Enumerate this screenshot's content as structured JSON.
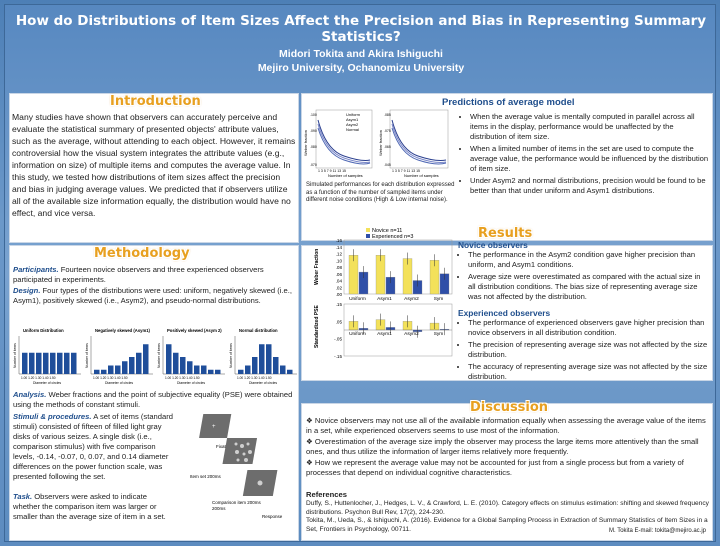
{
  "header": {
    "title": "How do Distributions of Item Sizes Affect the Precision and Bias in Representing Summary Statistics?",
    "authors": "Midori Tokita and  Akira Ishiguchi",
    "affiliation": "Mejiro University, Ochanomizu University"
  },
  "introduction": {
    "title": "Introduction",
    "text": "Many studies have shown that observers can accurately perceive and evaluate the statistical summary of presented objects' attribute values, such as the average, without attending to each object. However, it remains controversial how the visual system integrates the attribute values (e.g., information on size) of multiple items and computes the average value. In this study, we tested how distributions of item sizes affect the precision and bias in judging average values. We predicted that if observers utilize all of the available size information equally, the distribution would have no effect, and vice versa."
  },
  "predictions": {
    "title": "Predictions of average model",
    "caption": "Simulated performances for each distribution expressed as a function of the number of sampled items under different noise conditions (High & Low internal noise).",
    "bullets": [
      "When the average value is mentally computed in parallel across all items in the display, performance would be unaffected by the distribution of item size.",
      "When a limited number of items in the set are used to compute the average value, the performance would be influenced by the distribution of item size.",
      "Under Asym2 and normal distributions, precision would be found to be better than that under uniform and Asym1 distributions."
    ],
    "legend": [
      "Uniform",
      "Asym1",
      "Asym2",
      "Normal"
    ],
    "ylabel": "Weber fraction",
    "xlabel": "Number of samples",
    "left_ticks": [
      ".100",
      ".090",
      ".080",
      ".070"
    ],
    "right_ticks": [
      ".085",
      ".075",
      ".065",
      ".045"
    ],
    "x_ticks": "1 3 5 7 9 11 13 15"
  },
  "methodology": {
    "title": "Methodology",
    "participants_label": "Participants.",
    "participants": " Fourteen novice observers and three experienced observers participated in experiments.",
    "design_label": "Design.",
    "design": " Four types of the distributions were used: uniform, negatively skewed (i.e., Asym1), positively skewed (i.e., Asym2), and pseudo-normal distributions.",
    "dist_titles": [
      "Uniform Distribution",
      "Negatively skewed (Asym1)",
      "Positively skewed (Asym 2)",
      "Normal distribution"
    ],
    "dist_xlabel": "Diameter of circles",
    "dist_ylabel": "Number of items",
    "dist_values": [
      [
        5,
        5,
        5,
        5,
        5,
        5,
        5,
        5
      ],
      [
        1,
        1,
        2,
        2,
        3,
        4,
        5,
        7
      ],
      [
        7,
        5,
        4,
        3,
        2,
        2,
        1,
        1
      ],
      [
        1,
        2,
        4,
        7,
        7,
        4,
        2,
        1
      ]
    ],
    "dist_ticks": [
      "1.00  1.20  1.30  1.40  1.50",
      "1.00  1.20  1.30  1.40  1.50",
      "1.00  1.20  1.30  1.40  1.50",
      "1.00  1.20  1.30  1.40  1.50"
    ],
    "analysis_label": "Analysis.",
    "analysis": " Weber fractions and the point of subjective equality (PSE) were obtained using the methods of constant stimuli.",
    "stimuli_label": "Stimuli & procedures.",
    "stimuli": " A set of items (standard stimuli) consisted of fifteen of filled light gray disks of various seizes.  A single disk (i.e., comparison stimulus) with five comparison levels, -0.14, -0.07, 0, 0.07, and 0.14 diameter differences on the power function scale, was presented following the set.",
    "task_label": "Task.",
    "task": " Observers were asked to  indicate whether the comparison item was larger or smaller than the average size of item in a set.",
    "proc_labels": [
      "Fixation 500ms",
      "Item set 200ms",
      "Comparison item 200ms",
      "Response"
    ]
  },
  "results": {
    "title": "Results",
    "legend": [
      "Novice n=11",
      "Experienced n=3"
    ],
    "weber_ylabel": "Weber Fraction",
    "pse_ylabel": "Standardized PSE",
    "categories": [
      "Uniform",
      "Asym1",
      "Asym2",
      "Sym"
    ],
    "weber_ticks": [
      ".16",
      ".14",
      ".12",
      ".10",
      ".08",
      ".06",
      ".04",
      ".02",
      ".00"
    ],
    "pse_ticks": [
      ".15",
      ".05",
      "-.05",
      "-.15"
    ],
    "novice_heading": "Novice observers",
    "novice_bullets": [
      "The performance in the Asym2 condition gave higher precision than uniform, and Asym1 conditions.",
      "Average size were overestimated as compared with the actual size in all distribution conditions. The bias size of representing average size was not affected by the distribution."
    ],
    "experienced_heading": "Experienced observers",
    "experienced_bullets": [
      "The performance of experienced observers gave higher precision than novice observers in all distribution condition.",
      "The precision of representing average size was not affected by the size distribution.",
      "The accuracy of representing average size was not affected by the size distribution."
    ]
  },
  "chart_data": [
    {
      "type": "bar",
      "categories": [
        "Uniform",
        "Asym1",
        "Asym2",
        "Sym"
      ],
      "series": [
        {
          "name": "Novice n=11",
          "values": [
            0.115,
            0.115,
            0.105,
            0.1
          ]
        },
        {
          "name": "Experienced n=3",
          "values": [
            0.065,
            0.05,
            0.04,
            0.06
          ]
        }
      ],
      "ylabel": "Weber Fraction",
      "ylim": [
        0,
        0.16
      ]
    },
    {
      "type": "bar",
      "categories": [
        "Uniform",
        "Asym1",
        "Asym2",
        "Sym"
      ],
      "series": [
        {
          "name": "Novice n=11",
          "values": [
            0.05,
            0.06,
            0.05,
            0.04
          ]
        },
        {
          "name": "Experienced n=3",
          "values": [
            0.01,
            0.015,
            -0.01,
            0.005
          ]
        }
      ],
      "ylabel": "Standardized PSE",
      "ylim": [
        -0.15,
        0.15
      ]
    }
  ],
  "discussion": {
    "title": "Discussion",
    "bullets": [
      "Novice observers may not use all of the available information equally when assessing the average value of the items in a set, while experienced observers seems to use most of the information.",
      "Overestimation of the average size imply the observer may process the large items more attentively than the small ones, and thus utilize the information of larger items relatively more frequently.",
      "How we represent the average value may not be accounted for just from a single process but from a variety of processes that depend on individual cognitive characteristics."
    ],
    "references_title": "References",
    "references": [
      "Duffy, S., Huttenlocher, J., Hedges, L. V., & Crawford, L. E. (2010). Category effects on stimulus estimation: shifting and skewed frequency distributions. Psychon Bull Rev, 17(2), 224-230.",
      "Tokita, M., Ueda, S., & Ishiguchi, A. (2016). Evidence for a Global Sampling Process in Extraction of Summary Statistics of Item Sizes in a Set, Frontiers in Psychology, 00711."
    ],
    "email": "M. Tokita E-mail: tokita@mejiro.ac.jp"
  },
  "colors": {
    "novice": "#f3e15a",
    "experienced": "#2f4fa8",
    "accent": "#e8a020",
    "heading": "#1f4e8c"
  }
}
